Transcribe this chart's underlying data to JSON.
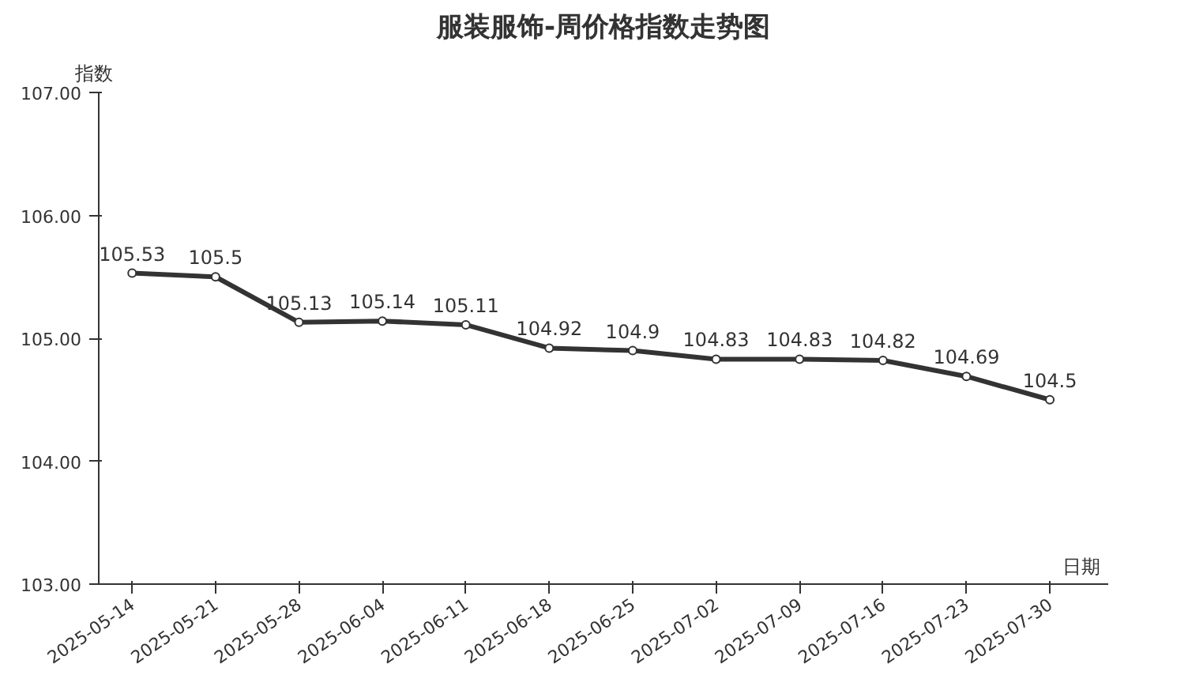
{
  "chart_data": {
    "type": "line",
    "title": "服装服饰-周价格指数走势图",
    "ylabel": "指数",
    "xlabel": "日期",
    "categories": [
      "2025-05-14",
      "2025-05-21",
      "2025-05-28",
      "2025-06-04",
      "2025-06-11",
      "2025-06-18",
      "2025-06-25",
      "2025-07-02",
      "2025-07-09",
      "2025-07-16",
      "2025-07-23",
      "2025-07-30"
    ],
    "series": [
      {
        "color": "#333333",
        "values": [
          105.53,
          105.5,
          105.13,
          105.14,
          105.11,
          104.92,
          104.9,
          104.83,
          104.83,
          104.82,
          104.69,
          104.5
        ]
      }
    ],
    "ylim": [
      103,
      107
    ],
    "yticks": [
      {
        "value": 103,
        "label": "103.00"
      },
      {
        "value": 104,
        "label": "104.00"
      },
      {
        "value": 105,
        "label": "105.00"
      },
      {
        "value": 106,
        "label": "106.00"
      },
      {
        "value": 107,
        "label": "107.00"
      }
    ],
    "grid": false,
    "marker": "circle",
    "line_style": "solid",
    "data_labels": true
  }
}
